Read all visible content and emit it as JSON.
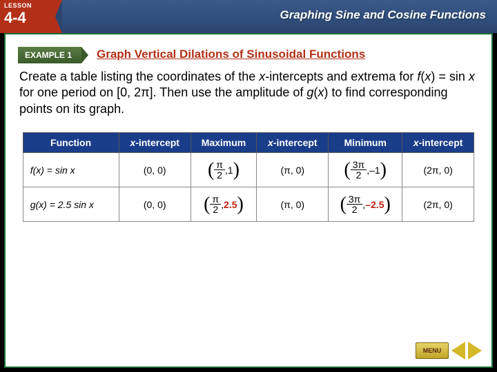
{
  "header": {
    "lesson_label": "LESSON",
    "lesson_number": "4-4",
    "chapter_title": "Graphing Sine and Cosine Functions"
  },
  "example": {
    "tab_label": "EXAMPLE 1",
    "title": "Graph Vertical Dilations of Sinusoidal Functions"
  },
  "instruction": {
    "part1": "Create a table listing the coordinates of the ",
    "part2_ital": "x",
    "part3": "-intercepts and extrema for ",
    "part4_ital": "f",
    "part5": "(",
    "part6_ital": "x",
    "part7": ") = sin ",
    "part8_ital": "x",
    "part9": " for one period on  [0, 2π]. Then use the amplitude of ",
    "part10_ital": "g",
    "part11": "(",
    "part12_ital": "x",
    "part13": ") to find corresponding points on its graph."
  },
  "table": {
    "headers": [
      "Function",
      "x-intercept",
      "Maximum",
      "x-intercept",
      "Minimum",
      "x-intercept"
    ],
    "rows": [
      {
        "fn_prefix": "f",
        "fn_body": "(x) = sin x",
        "cells": [
          {
            "type": "simple",
            "text": "(0, 0)"
          },
          {
            "type": "fracpair",
            "num": "π",
            "den": "2",
            "y": "1",
            "hl": false
          },
          {
            "type": "simple",
            "text": "(π, 0)"
          },
          {
            "type": "fracpair",
            "num": "3π",
            "den": "2",
            "y": "–1",
            "hl": false
          },
          {
            "type": "simple",
            "text": "(2π, 0)"
          }
        ]
      },
      {
        "fn_prefix": "g",
        "fn_body": "(x) = 2.5 sin x",
        "cells": [
          {
            "type": "simple",
            "text": "(0, 0)"
          },
          {
            "type": "fracpair",
            "num": "π",
            "den": "2",
            "y": "2.5",
            "hl": true
          },
          {
            "type": "simple",
            "text": "(π, 0)"
          },
          {
            "type": "fracpair",
            "num": "3π",
            "den": "2",
            "y": "–2.5",
            "hl": true
          },
          {
            "type": "simple",
            "text": "(2π, 0)"
          }
        ]
      }
    ],
    "header_bg": "#1a3d8a",
    "header_fg": "#ffffff",
    "border_color": "#888888",
    "highlight_color": "#c02010"
  },
  "nav": {
    "menu_label": "MENU"
  },
  "colors": {
    "header_gradient_top": "#3a5a8a",
    "header_gradient_bottom": "#2a4570",
    "lesson_badge": "#b23018",
    "frame_border": "#1a6e3a",
    "example_tab_top": "#5a7c44",
    "example_tab_bottom": "#3a5a2a",
    "example_title": "#b23018"
  }
}
